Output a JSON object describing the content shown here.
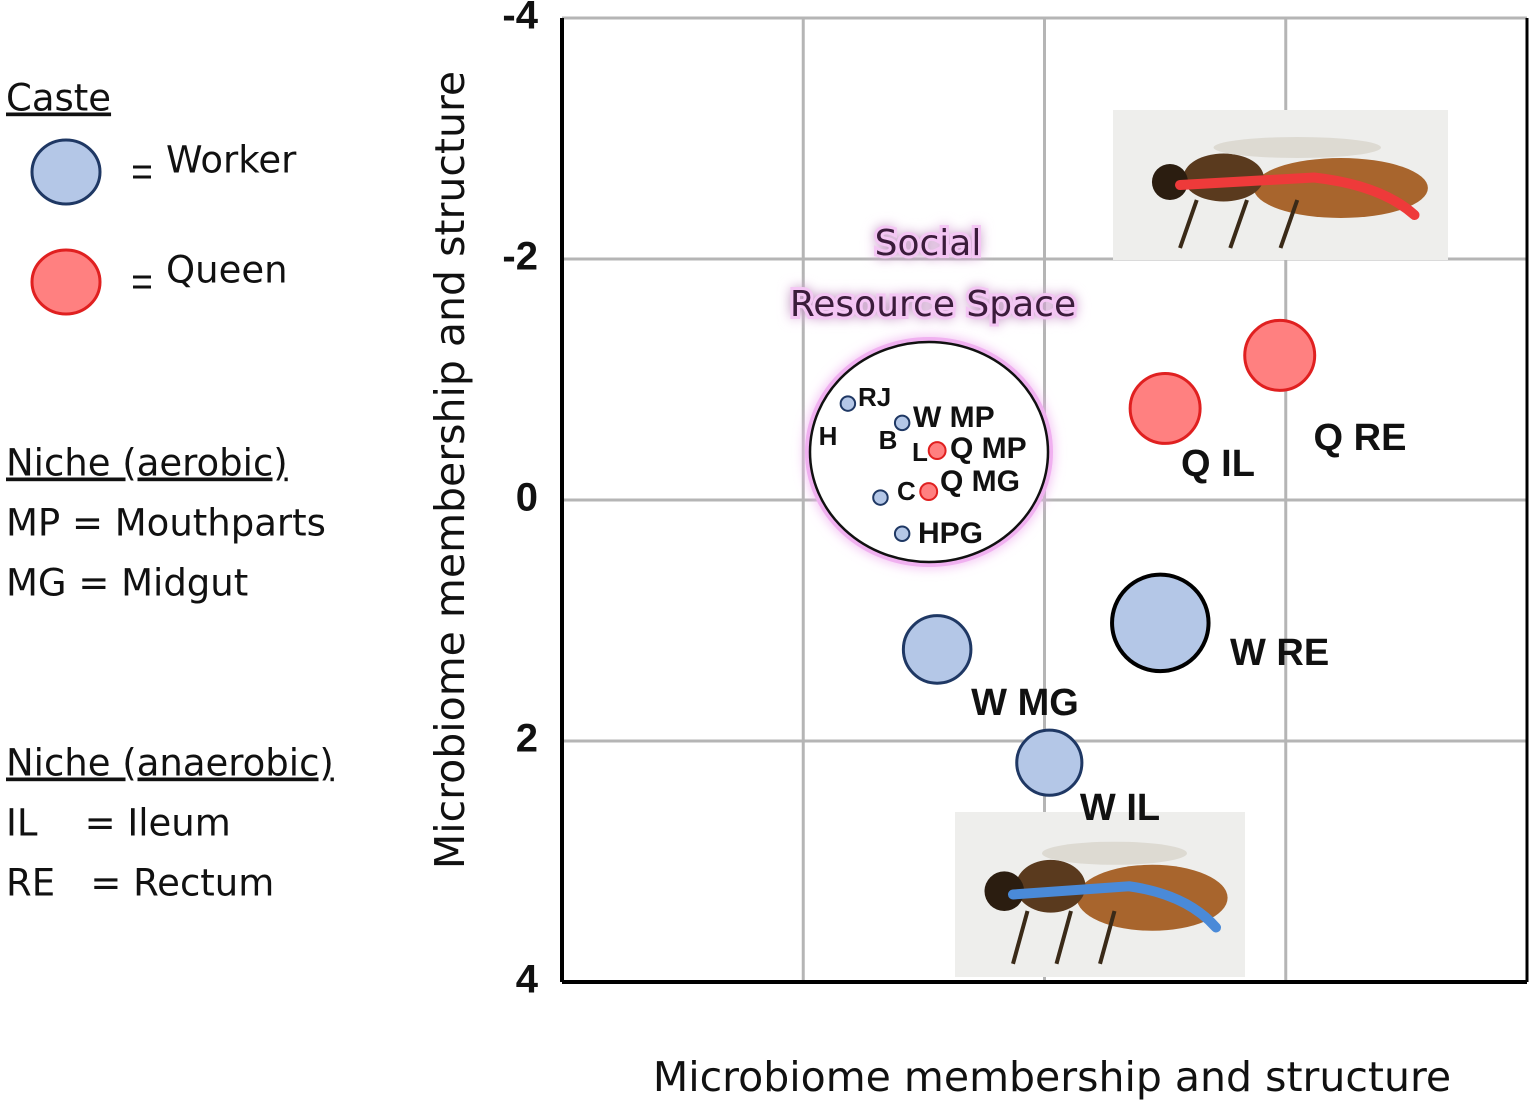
{
  "chart_data": {
    "type": "scatter",
    "x_label": "Microbiome membership and structure",
    "y_label": "Microbiome membership and structure",
    "xlim": [
      -4,
      4
    ],
    "ylim": [
      -4,
      4
    ],
    "xticks": [
      -2,
      0,
      2
    ],
    "yticks": [
      -4,
      -2,
      0,
      2,
      4
    ],
    "y_inverted": true,
    "grid": true,
    "show_xtick_labels": false,
    "legend_title": "Caste",
    "series": [
      {
        "name": "Worker",
        "color": "#b4c7e7",
        "edge_color": "#1f3864",
        "x": [
          -0.89,
          0.96,
          0.04,
          -1.63,
          -1.18,
          -1.36,
          -1.18
        ],
        "y": [
          1.24,
          1.02,
          2.18,
          -0.8,
          -0.64,
          -0.02,
          0.28
        ],
        "sizes": [
          0.28,
          0.4,
          0.27,
          0.06,
          0.06,
          0.06,
          0.06
        ],
        "labels": [
          "W MG",
          "W RE",
          "W IL",
          "RJ",
          "W MP",
          "C",
          "HPG"
        ]
      },
      {
        "name": "Queen",
        "color": "#ff8080",
        "edge_color": "#e02020",
        "x": [
          1.0,
          1.95,
          -0.89,
          -0.96
        ],
        "y": [
          -0.76,
          -1.2,
          -0.41,
          -0.07
        ],
        "sizes": [
          0.29,
          0.29,
          0.07,
          0.07
        ],
        "labels": [
          "Q IL",
          "Q RE",
          "Q MP",
          "Q MG"
        ]
      }
    ],
    "annotations": [
      "H",
      "B",
      "L"
    ],
    "region_label": [
      "Social",
      "Resource Space"
    ],
    "notes": [
      {
        "title": "Niche (aerobic)",
        "lines": [
          "MP = Mouthparts",
          "MG = Midgut"
        ]
      },
      {
        "title": "Niche (anaerobic)",
        "lines": [
          "IL    = Ileum",
          "RE   = Rectum"
        ]
      }
    ]
  }
}
